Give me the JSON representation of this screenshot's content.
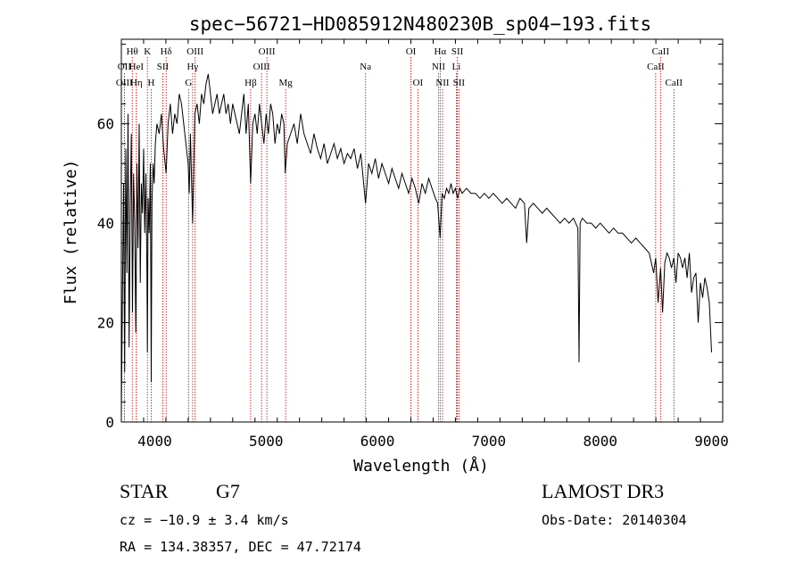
{
  "footer": {
    "object_class": "STAR",
    "subclass": "G7",
    "survey": "LAMOST DR3",
    "redshift": "cz = −10.9 ± 3.4 km/s",
    "obs_date": "Obs-Date: 20140304",
    "coords": "RA = 134.38357, DEC =  47.72174"
  },
  "colors": {
    "line": "#000000",
    "marker": "#cc0000"
  },
  "chart_data": {
    "type": "line",
    "title": "spec−56721−HD085912N480230B_sp04−193.fits",
    "xlabel": "Wavelength (Å)",
    "ylabel": "Flux (relative)",
    "xlim": [
      3700,
      9100
    ],
    "ylim": [
      0,
      77
    ],
    "x_ticks": [
      4000,
      5000,
      6000,
      7000,
      8000,
      9000
    ],
    "y_ticks": [
      0,
      20,
      40,
      60
    ],
    "grid": false,
    "series": [
      {
        "x": [
          3700,
          3710,
          3720,
          3730,
          3740,
          3750,
          3760,
          3770,
          3780,
          3790,
          3800,
          3810,
          3820,
          3830,
          3840,
          3850,
          3860,
          3870,
          3880,
          3890,
          3900,
          3910,
          3920,
          3930,
          3934,
          3940,
          3950,
          3960,
          3968,
          3975,
          3985,
          3995,
          4005,
          4020,
          4040,
          4060,
          4080,
          4102,
          4120,
          4140,
          4160,
          4180,
          4200,
          4220,
          4240,
          4260,
          4280,
          4300,
          4310,
          4320,
          4340,
          4360,
          4380,
          4400,
          4420,
          4440,
          4460,
          4480,
          4500,
          4520,
          4540,
          4560,
          4580,
          4600,
          4620,
          4640,
          4660,
          4680,
          4700,
          4720,
          4740,
          4760,
          4780,
          4800,
          4820,
          4840,
          4861,
          4880,
          4900,
          4920,
          4940,
          4960,
          4980,
          5000,
          5020,
          5040,
          5060,
          5080,
          5100,
          5120,
          5140,
          5160,
          5172,
          5190,
          5220,
          5250,
          5280,
          5310,
          5340,
          5370,
          5400,
          5430,
          5460,
          5490,
          5520,
          5550,
          5580,
          5610,
          5640,
          5670,
          5700,
          5730,
          5760,
          5790,
          5820,
          5850,
          5893,
          5920,
          5950,
          5980,
          6010,
          6040,
          6070,
          6100,
          6130,
          6160,
          6190,
          6220,
          6250,
          6280,
          6310,
          6340,
          6370,
          6400,
          6430,
          6460,
          6490,
          6520,
          6540,
          6563,
          6580,
          6600,
          6620,
          6640,
          6660,
          6680,
          6700,
          6720,
          6740,
          6760,
          6800,
          6840,
          6880,
          6920,
          6960,
          7000,
          7040,
          7080,
          7120,
          7160,
          7200,
          7240,
          7280,
          7320,
          7340,
          7360,
          7400,
          7440,
          7480,
          7520,
          7560,
          7600,
          7640,
          7680,
          7720,
          7760,
          7800,
          7810,
          7820,
          7840,
          7880,
          7920,
          7960,
          8000,
          8040,
          8080,
          8120,
          8160,
          8200,
          8240,
          8280,
          8320,
          8360,
          8400,
          8440,
          8480,
          8498,
          8520,
          8542,
          8560,
          8580,
          8600,
          8620,
          8640,
          8662,
          8680,
          8700,
          8720,
          8740,
          8760,
          8780,
          8800,
          8820,
          8840,
          8860,
          8880,
          8900,
          8920,
          8940,
          8960,
          8980,
          9000
        ],
        "y": [
          1,
          25,
          48,
          10,
          55,
          30,
          62,
          15,
          44,
          58,
          22,
          50,
          40,
          18,
          52,
          35,
          60,
          28,
          48,
          42,
          55,
          38,
          50,
          30,
          14,
          45,
          38,
          52,
          8,
          44,
          52,
          48,
          56,
          60,
          58,
          62,
          55,
          50,
          60,
          64,
          58,
          62,
          60,
          66,
          64,
          60,
          56,
          52,
          46,
          58,
          40,
          62,
          64,
          60,
          66,
          64,
          68,
          70,
          66,
          62,
          64,
          66,
          62,
          64,
          66,
          62,
          64,
          60,
          64,
          62,
          60,
          58,
          62,
          66,
          58,
          64,
          48,
          60,
          62,
          58,
          64,
          60,
          56,
          62,
          58,
          64,
          62,
          56,
          60,
          58,
          62,
          60,
          50,
          56,
          58,
          60,
          56,
          62,
          58,
          56,
          54,
          58,
          55,
          53,
          56,
          52,
          54,
          56,
          53,
          55,
          52,
          54,
          53,
          55,
          51,
          54,
          44,
          52,
          50,
          53,
          49,
          52,
          50,
          48,
          51,
          49,
          47,
          50,
          48,
          46,
          49,
          47,
          44,
          48,
          46,
          49,
          47,
          45,
          44,
          37,
          46,
          45,
          47,
          46,
          48,
          46,
          47,
          45,
          47,
          46,
          47,
          46,
          46,
          45,
          46,
          45,
          46,
          45,
          44,
          45,
          44,
          43,
          45,
          44,
          36,
          43,
          44,
          43,
          42,
          43,
          42,
          41,
          40,
          41,
          40,
          41,
          39,
          12,
          40,
          41,
          40,
          40,
          39,
          40,
          39,
          38,
          39,
          38,
          38,
          37,
          36,
          37,
          36,
          35,
          34,
          30,
          33,
          24,
          31,
          22,
          32,
          34,
          33,
          31,
          33,
          28,
          34,
          33,
          31,
          33,
          29,
          34,
          26,
          29,
          30,
          20,
          28,
          25,
          29,
          27,
          24,
          14
        ]
      }
    ],
    "annotations": [
      {
        "label": "Hθ",
        "x": 3798,
        "row": 1
      },
      {
        "label": "OII",
        "x": 3727,
        "row": 2
      },
      {
        "label": "OIII",
        "x": 3727,
        "row": 3
      },
      {
        "label": "HeI",
        "x": 3835,
        "row": 2
      },
      {
        "label": "Hη",
        "x": 3835,
        "row": 3
      },
      {
        "label": "K",
        "x": 3934,
        "row": 1
      },
      {
        "label": "SII",
        "x": 4072,
        "row": 2
      },
      {
        "label": "H",
        "x": 3968,
        "row": 3
      },
      {
        "label": "Hδ",
        "x": 4102,
        "row": 1
      },
      {
        "label": "OIII",
        "x": 4363,
        "row": 1
      },
      {
        "label": "Hγ",
        "x": 4340,
        "row": 2
      },
      {
        "label": "G",
        "x": 4304,
        "row": 3
      },
      {
        "label": "Hβ",
        "x": 4861,
        "row": 3
      },
      {
        "label": "OIII",
        "x": 5007,
        "row": 1
      },
      {
        "label": "OIII",
        "x": 4959,
        "row": 2
      },
      {
        "label": "Mg",
        "x": 5175,
        "row": 3
      },
      {
        "label": "Na",
        "x": 5893,
        "row": 2
      },
      {
        "label": "OI",
        "x": 6300,
        "row": 1
      },
      {
        "label": "OI",
        "x": 6363,
        "row": 3
      },
      {
        "label": "Hα",
        "x": 6563,
        "row": 1
      },
      {
        "label": "NII",
        "x": 6548,
        "row": 2
      },
      {
        "label": "NII",
        "x": 6584,
        "row": 3
      },
      {
        "label": "SII",
        "x": 6717,
        "row": 1
      },
      {
        "label": "Li",
        "x": 6708,
        "row": 2
      },
      {
        "label": "SII",
        "x": 6731,
        "row": 3
      },
      {
        "label": "CaII",
        "x": 8542,
        "row": 1
      },
      {
        "label": "CaII",
        "x": 8498,
        "row": 2
      },
      {
        "label": "CaII",
        "x": 8662,
        "row": 3
      }
    ]
  }
}
